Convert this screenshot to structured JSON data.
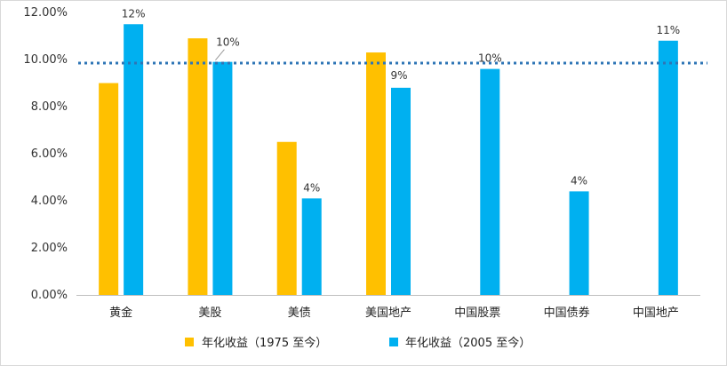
{
  "chart_data": {
    "type": "bar",
    "categories": [
      "黄金",
      "美股",
      "美债",
      "美国地产",
      "中国股票",
      "中国债券",
      "中国地产"
    ],
    "series": [
      {
        "name": "年化收益（1975 至今）",
        "color": "#FFC000",
        "values": [
          9.0,
          10.9,
          6.5,
          10.3,
          null,
          null,
          null
        ]
      },
      {
        "name": "年化收益（2005 至今）",
        "color": "#00B0F0",
        "values": [
          11.5,
          9.9,
          4.1,
          8.8,
          9.6,
          4.4,
          10.8
        ],
        "labels": [
          "12%",
          "10%",
          "4%",
          "9%",
          "10%",
          "4%",
          "11%"
        ]
      }
    ],
    "ylim": [
      0,
      12
    ],
    "yticks": [
      "0.00%",
      "2.00%",
      "4.00%",
      "6.00%",
      "8.00%",
      "10.00%",
      "12.00%"
    ],
    "reference_line": {
      "value": 9.85,
      "style": "dotted",
      "color": "#2E75B6"
    },
    "grid": false,
    "legend": "bottom"
  }
}
